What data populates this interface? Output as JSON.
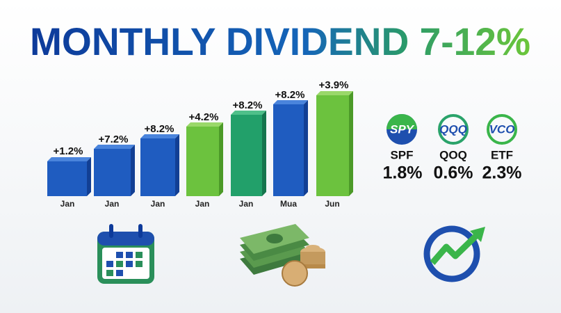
{
  "title": "MONTHLY DIVIDEND 7-12%",
  "bars": [
    {
      "label": "+1.2%",
      "month": "Jan"
    },
    {
      "label": "+7.2%",
      "month": "Jan"
    },
    {
      "label": "+8.2%",
      "month": "Jan"
    },
    {
      "label": "+4.2%",
      "month": "Jan"
    },
    {
      "label": "+8.2%",
      "month": "Jan"
    },
    {
      "label": "+8.2%",
      "month": "Mua"
    },
    {
      "label": "+3.9%",
      "month": "Jun"
    }
  ],
  "funds": [
    {
      "logo": "SPY",
      "name": "SPF",
      "yield": "1.8%"
    },
    {
      "logo": "QQQ",
      "name": "QOQ",
      "yield": "0.6%"
    },
    {
      "logo": "VCO",
      "name": "ETF",
      "yield": "2.3%"
    }
  ]
}
